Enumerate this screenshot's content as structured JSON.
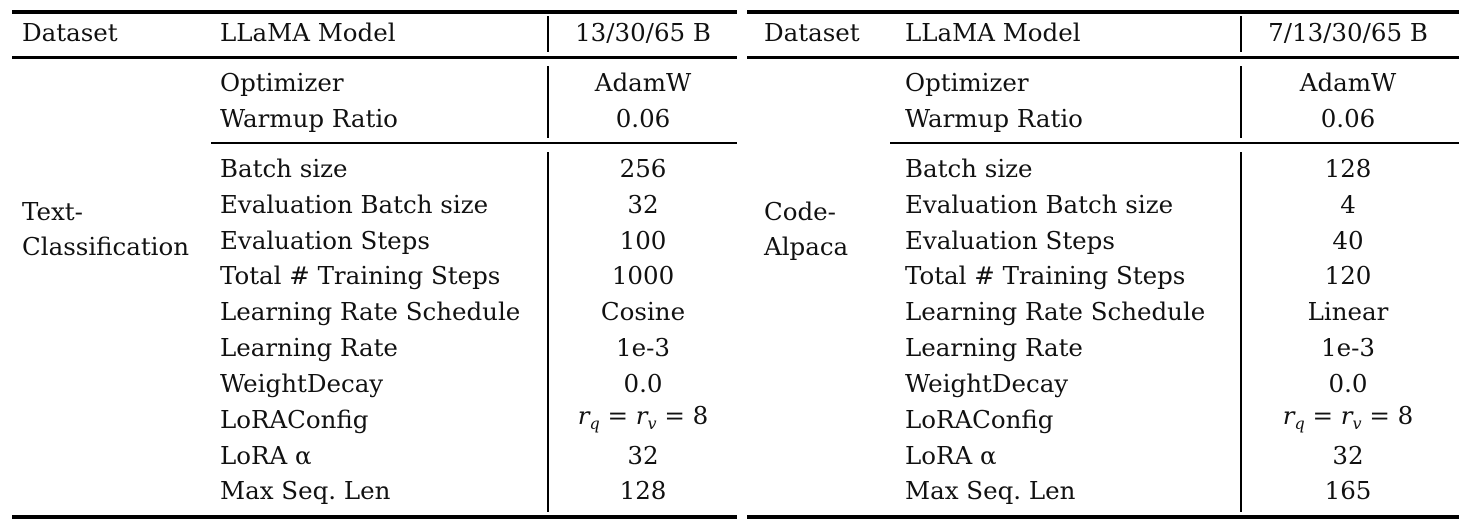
{
  "tables": [
    {
      "headers": {
        "dataset": "Dataset",
        "model": "LLaMA Model",
        "size": "13/30/65 B"
      },
      "dataset_name": [
        "Text-",
        "Classification"
      ],
      "optimizer_rows": [
        {
          "label": "Optimizer",
          "value": "AdamW"
        },
        {
          "label": "Warmup Ratio",
          "value": "0.06"
        }
      ],
      "rows": [
        {
          "label": "Batch size",
          "value": "256"
        },
        {
          "label": "Evaluation Batch size",
          "value": "32"
        },
        {
          "label": "Evaluation Steps",
          "value": "100"
        },
        {
          "label": "Total # Training Steps",
          "value": "1000"
        },
        {
          "label": "Learning Rate Schedule",
          "value": "Cosine"
        },
        {
          "label": "Learning Rate",
          "value": "1e-3"
        },
        {
          "label": "WeightDecay",
          "value": "0.0"
        },
        {
          "label": "LoRAConfig",
          "value": "r_q = r_v = 8"
        },
        {
          "label": "LoRA α",
          "value": "32"
        },
        {
          "label": "Max Seq. Len",
          "value": "128"
        }
      ]
    },
    {
      "headers": {
        "dataset": "Dataset",
        "model": "LLaMA Model",
        "size": "7/13/30/65 B"
      },
      "dataset_name": [
        "Code-",
        "Alpaca"
      ],
      "optimizer_rows": [
        {
          "label": "Optimizer",
          "value": "AdamW"
        },
        {
          "label": "Warmup Ratio",
          "value": "0.06"
        }
      ],
      "rows": [
        {
          "label": "Batch size",
          "value": "128"
        },
        {
          "label": "Evaluation Batch size",
          "value": "4"
        },
        {
          "label": "Evaluation Steps",
          "value": "40"
        },
        {
          "label": "Total # Training Steps",
          "value": "120"
        },
        {
          "label": "Learning Rate Schedule",
          "value": "Linear"
        },
        {
          "label": "Learning Rate",
          "value": "1e-3"
        },
        {
          "label": "WeightDecay",
          "value": "0.0"
        },
        {
          "label": "LoRAConfig",
          "value": "r_q = r_v = 8"
        },
        {
          "label": "LoRA α",
          "value": "32"
        },
        {
          "label": "Max Seq. Len",
          "value": "165"
        }
      ]
    }
  ]
}
